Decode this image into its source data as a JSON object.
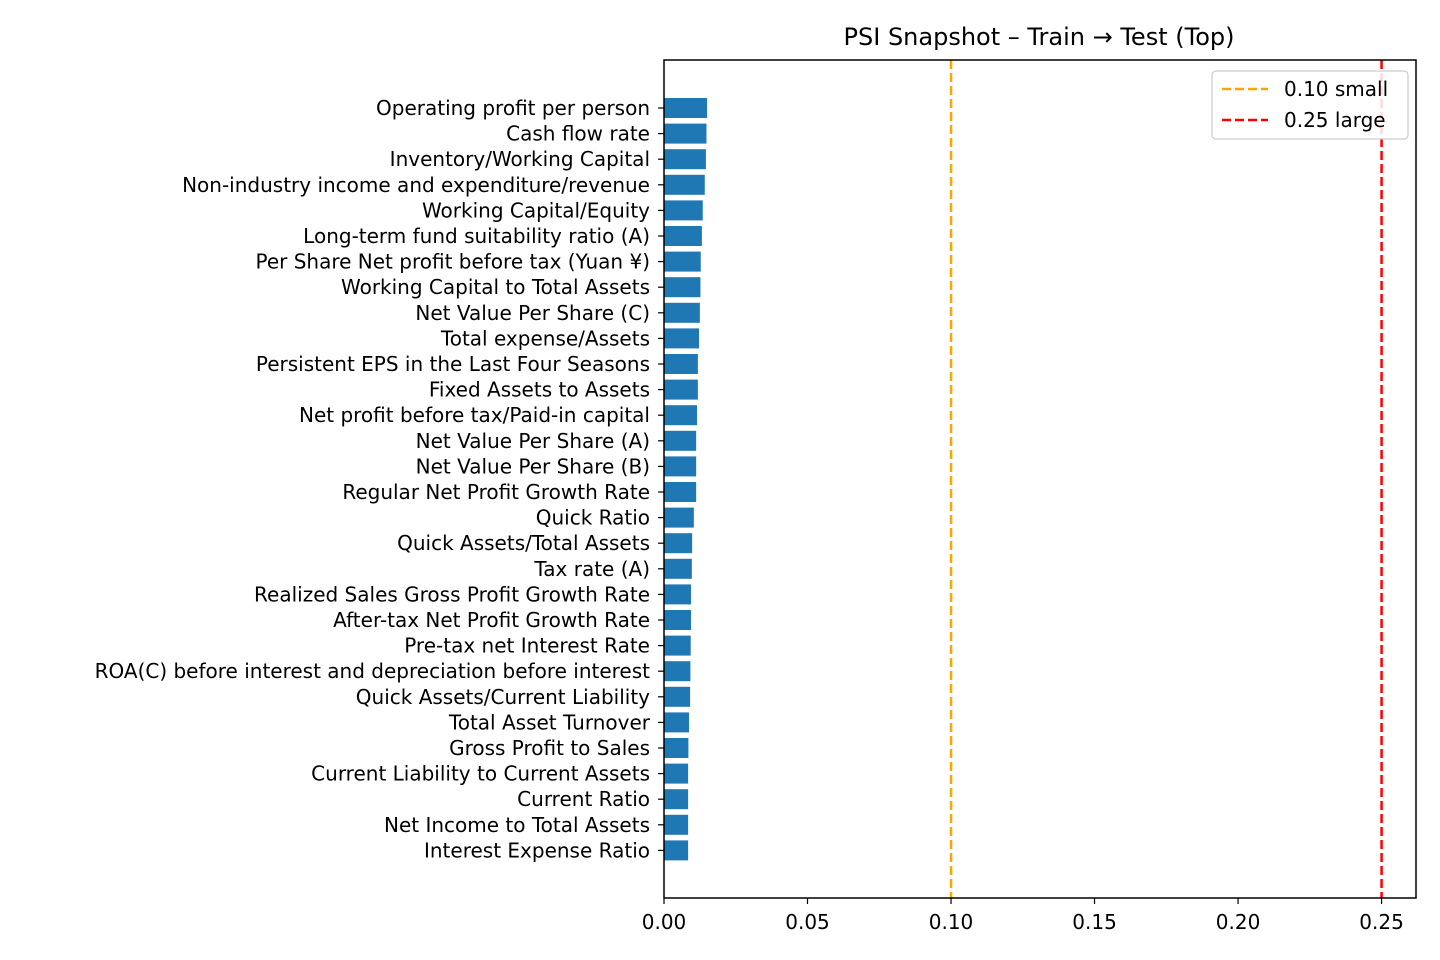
{
  "chart_data": {
    "type": "bar",
    "orientation": "horizontal",
    "title": "PSI Snapshot – Train → Test (Top)",
    "xlabel": "",
    "ylabel": "",
    "xlim": [
      0,
      0.262
    ],
    "x_ticks": [
      "0.00",
      "0.05",
      "0.10",
      "0.15",
      "0.20",
      "0.25"
    ],
    "x_tick_values": [
      0,
      0.05,
      0.1,
      0.15,
      0.2,
      0.25
    ],
    "grid": false,
    "legend_position": "top-right",
    "bar_color": "#1f77b4",
    "categories": [
      "Operating profit per person",
      "Cash flow rate",
      "Inventory/Working Capital",
      "Non-industry income and expenditure/revenue",
      "Working Capital/Equity",
      "Long-term fund suitability ratio (A)",
      "Per Share Net profit before tax (Yuan ¥)",
      "Working Capital to Total Assets",
      "Net Value Per Share (C)",
      "Total expense/Assets",
      "Persistent EPS in the Last Four Seasons",
      "Fixed Assets to Assets",
      "Net profit before tax/Paid-in capital",
      "Net Value Per Share (A)",
      "Net Value Per Share (B)",
      "Regular Net Profit Growth Rate",
      "Quick Ratio",
      "Quick Assets/Total Assets",
      "Tax rate (A)",
      "Realized Sales Gross Profit Growth Rate",
      "After-tax Net Profit Growth Rate",
      "Pre-tax net Interest Rate",
      "ROA(C) before interest and depreciation before interest",
      "Quick Assets/Current Liability",
      "Total Asset Turnover",
      "Gross Profit to Sales",
      "Current Liability to Current Assets",
      "Current Ratio",
      "Net Income to Total Assets",
      "Interest Expense Ratio"
    ],
    "values": [
      0.015,
      0.0148,
      0.0146,
      0.0142,
      0.0135,
      0.0132,
      0.0128,
      0.0127,
      0.0125,
      0.0122,
      0.0118,
      0.0118,
      0.0115,
      0.0112,
      0.0112,
      0.0112,
      0.0104,
      0.0098,
      0.0097,
      0.0094,
      0.0094,
      0.0093,
      0.0092,
      0.0091,
      0.0087,
      0.0085,
      0.0084,
      0.0084,
      0.0084,
      0.0084
    ],
    "reference_lines": [
      {
        "label": "0.10 small",
        "value": 0.1,
        "color": "#ffa500",
        "style": "dashed"
      },
      {
        "label": "0.25 large",
        "value": 0.25,
        "color": "#ff0000",
        "style": "dashed"
      }
    ]
  }
}
